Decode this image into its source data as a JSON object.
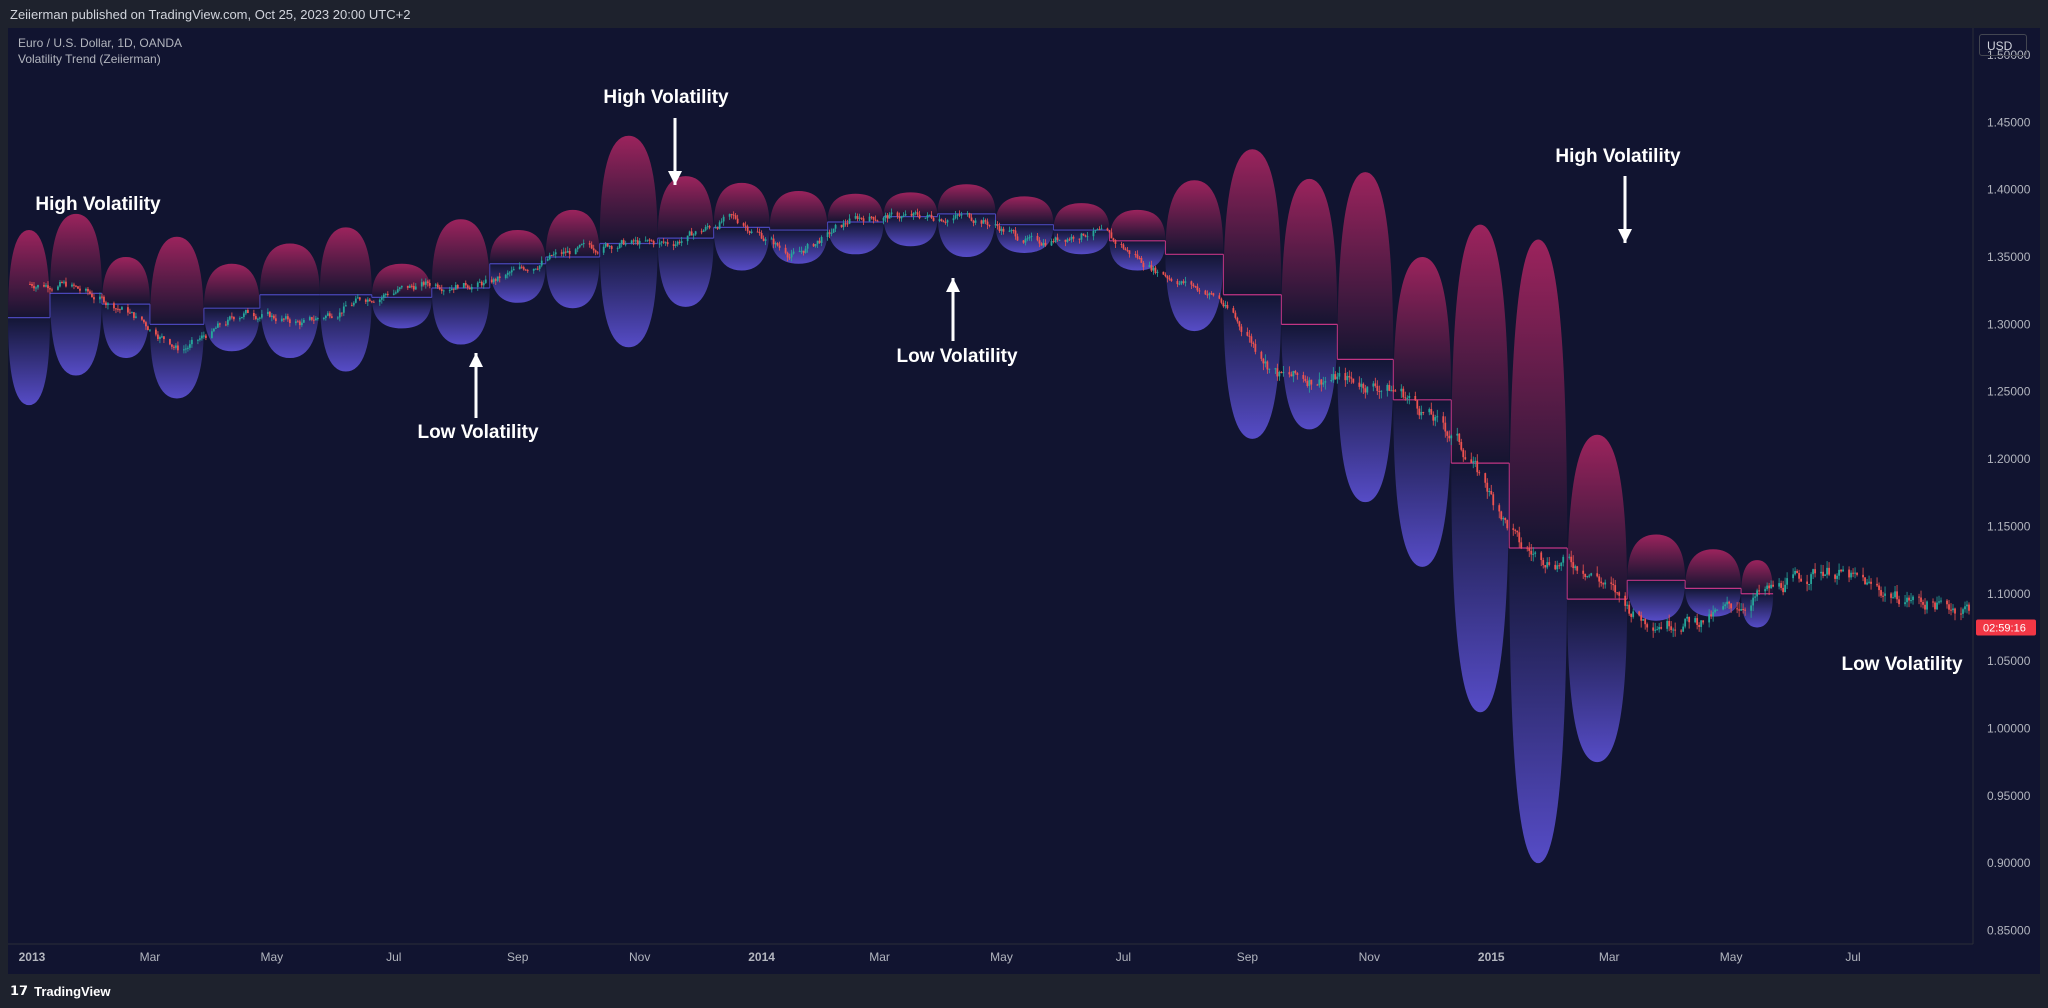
{
  "header": {
    "publish_text": "Zeiierman published on TradingView.com, Oct 25, 2023 20:00 UTC+2"
  },
  "legend": {
    "symbol": "Euro / U.S. Dollar, 1D, OANDA",
    "indicator": "Volatility Trend (Zeiierman)"
  },
  "price_scale": {
    "currency": "USD",
    "last_price_timer": "02:59:16"
  },
  "footer": {
    "logo": "𝟭𝟳",
    "brand": "TradingView"
  },
  "colors": {
    "background": "#111430",
    "up_candle": "#26a69a",
    "down_candle": "#ef5350",
    "volatility_upper": "#a3245f",
    "volatility_lower": "#5a4fcf",
    "trend_line": "#c13584",
    "last_price_badge": "#f23645"
  },
  "chart_data": {
    "type": "candlestick",
    "title": "Euro / U.S. Dollar, 1D, OANDA",
    "x_tick_labels": [
      "2013",
      "Mar",
      "May",
      "Jul",
      "Sep",
      "Nov",
      "2014",
      "Mar",
      "May",
      "Jul",
      "Sep",
      "Nov",
      "2015",
      "Mar",
      "May",
      "Jul"
    ],
    "y_tick_labels": [
      "1.50000",
      "1.45000",
      "1.40000",
      "1.35000",
      "1.30000",
      "1.25000",
      "1.20000",
      "1.15000",
      "1.10000",
      "1.05000",
      "1.00000",
      "0.95000",
      "0.90000",
      "0.85000"
    ],
    "ylim": [
      0.84,
      1.52
    ],
    "price_path_monthly_close": [
      {
        "date": "2013-01",
        "close": 1.33
      },
      {
        "date": "2013-02",
        "close": 1.31
      },
      {
        "date": "2013-03",
        "close": 1.28
      },
      {
        "date": "2013-04",
        "close": 1.31
      },
      {
        "date": "2013-05",
        "close": 1.3
      },
      {
        "date": "2013-06",
        "close": 1.32
      },
      {
        "date": "2013-07",
        "close": 1.33
      },
      {
        "date": "2013-08",
        "close": 1.33
      },
      {
        "date": "2013-09",
        "close": 1.35
      },
      {
        "date": "2013-10",
        "close": 1.36
      },
      {
        "date": "2013-11",
        "close": 1.36
      },
      {
        "date": "2013-12",
        "close": 1.38
      },
      {
        "date": "2014-01",
        "close": 1.35
      },
      {
        "date": "2014-02",
        "close": 1.38
      },
      {
        "date": "2014-03",
        "close": 1.38
      },
      {
        "date": "2014-04",
        "close": 1.38
      },
      {
        "date": "2014-05",
        "close": 1.36
      },
      {
        "date": "2014-06",
        "close": 1.37
      },
      {
        "date": "2014-07",
        "close": 1.34
      },
      {
        "date": "2014-08",
        "close": 1.32
      },
      {
        "date": "2014-09",
        "close": 1.26
      },
      {
        "date": "2014-10",
        "close": 1.26
      },
      {
        "date": "2014-11",
        "close": 1.25
      },
      {
        "date": "2014-12",
        "close": 1.21
      },
      {
        "date": "2015-01",
        "close": 1.13
      },
      {
        "date": "2015-02",
        "close": 1.12
      },
      {
        "date": "2015-03",
        "close": 1.08
      },
      {
        "date": "2015-04",
        "close": 1.08
      },
      {
        "date": "2015-05",
        "close": 1.1
      },
      {
        "date": "2015-06",
        "close": 1.12
      },
      {
        "date": "2015-07",
        "close": 1.1
      },
      {
        "date": "2015-08",
        "close": 1.09
      }
    ],
    "volatility_envelopes": [
      {
        "start": "2012-12-20",
        "end": "2013-01-10",
        "upper": 1.37,
        "mid": 1.305,
        "lower": 1.24
      },
      {
        "start": "2013-01-10",
        "end": "2013-02-05",
        "upper": 1.382,
        "mid": 1.323,
        "lower": 1.262
      },
      {
        "start": "2013-02-05",
        "end": "2013-03-01",
        "upper": 1.35,
        "mid": 1.315,
        "lower": 1.275
      },
      {
        "start": "2013-03-01",
        "end": "2013-03-28",
        "upper": 1.365,
        "mid": 1.3,
        "lower": 1.245
      },
      {
        "start": "2013-03-28",
        "end": "2013-04-25",
        "upper": 1.345,
        "mid": 1.312,
        "lower": 1.28
      },
      {
        "start": "2013-04-25",
        "end": "2013-05-25",
        "upper": 1.36,
        "mid": 1.322,
        "lower": 1.275
      },
      {
        "start": "2013-05-25",
        "end": "2013-06-20",
        "upper": 1.372,
        "mid": 1.322,
        "lower": 1.265
      },
      {
        "start": "2013-06-20",
        "end": "2013-07-20",
        "upper": 1.345,
        "mid": 1.32,
        "lower": 1.297
      },
      {
        "start": "2013-07-20",
        "end": "2013-08-18",
        "upper": 1.378,
        "mid": 1.327,
        "lower": 1.285
      },
      {
        "start": "2013-08-18",
        "end": "2013-09-15",
        "upper": 1.37,
        "mid": 1.345,
        "lower": 1.316
      },
      {
        "start": "2013-09-15",
        "end": "2013-10-12",
        "upper": 1.385,
        "mid": 1.35,
        "lower": 1.312
      },
      {
        "start": "2013-10-12",
        "end": "2013-11-10",
        "upper": 1.44,
        "mid": 1.36,
        "lower": 1.283
      },
      {
        "start": "2013-11-10",
        "end": "2013-12-08",
        "upper": 1.41,
        "mid": 1.364,
        "lower": 1.313
      },
      {
        "start": "2013-12-08",
        "end": "2014-01-05",
        "upper": 1.405,
        "mid": 1.372,
        "lower": 1.34
      },
      {
        "start": "2014-01-05",
        "end": "2014-02-03",
        "upper": 1.399,
        "mid": 1.37,
        "lower": 1.345
      },
      {
        "start": "2014-02-03",
        "end": "2014-03-03",
        "upper": 1.397,
        "mid": 1.376,
        "lower": 1.352
      },
      {
        "start": "2014-03-03",
        "end": "2014-03-30",
        "upper": 1.398,
        "mid": 1.38,
        "lower": 1.358
      },
      {
        "start": "2014-03-30",
        "end": "2014-04-28",
        "upper": 1.404,
        "mid": 1.382,
        "lower": 1.35
      },
      {
        "start": "2014-04-28",
        "end": "2014-05-27",
        "upper": 1.395,
        "mid": 1.374,
        "lower": 1.353
      },
      {
        "start": "2014-05-27",
        "end": "2014-06-24",
        "upper": 1.39,
        "mid": 1.37,
        "lower": 1.352
      },
      {
        "start": "2014-06-24",
        "end": "2014-07-22",
        "upper": 1.385,
        "mid": 1.362,
        "lower": 1.34
      },
      {
        "start": "2014-07-22",
        "end": "2014-08-20",
        "upper": 1.407,
        "mid": 1.352,
        "lower": 1.295
      },
      {
        "start": "2014-08-20",
        "end": "2014-09-18",
        "upper": 1.43,
        "mid": 1.322,
        "lower": 1.215
      },
      {
        "start": "2014-09-18",
        "end": "2014-10-16",
        "upper": 1.408,
        "mid": 1.3,
        "lower": 1.222
      },
      {
        "start": "2014-10-16",
        "end": "2014-11-13",
        "upper": 1.413,
        "mid": 1.274,
        "lower": 1.168
      },
      {
        "start": "2014-11-13",
        "end": "2014-12-12",
        "upper": 1.35,
        "mid": 1.244,
        "lower": 1.12
      },
      {
        "start": "2014-12-12",
        "end": "2015-01-10",
        "upper": 1.374,
        "mid": 1.197,
        "lower": 1.012
      },
      {
        "start": "2015-01-10",
        "end": "2015-02-08",
        "upper": 1.363,
        "mid": 1.134,
        "lower": 0.9
      },
      {
        "start": "2015-02-08",
        "end": "2015-03-10",
        "upper": 1.218,
        "mid": 1.096,
        "lower": 0.975
      },
      {
        "start": "2015-03-10",
        "end": "2015-04-08",
        "upper": 1.144,
        "mid": 1.11,
        "lower": 1.08
      },
      {
        "start": "2015-04-08",
        "end": "2015-05-06",
        "upper": 1.133,
        "mid": 1.104,
        "lower": 1.083
      },
      {
        "start": "2015-05-06",
        "end": "2015-05-22",
        "upper": 1.125,
        "mid": 1.1,
        "lower": 1.075
      }
    ],
    "annotations": [
      {
        "text": "High Volatility",
        "type": "label"
      },
      {
        "text": "High Volatility",
        "type": "label_with_down_arrow"
      },
      {
        "text": "High Volatility",
        "type": "label_with_down_arrow"
      },
      {
        "text": "Low Volatility",
        "type": "label_with_up_arrow"
      },
      {
        "text": "Low Volatility",
        "type": "label_with_up_arrow"
      },
      {
        "text": "Low Volatility",
        "type": "label"
      }
    ]
  }
}
